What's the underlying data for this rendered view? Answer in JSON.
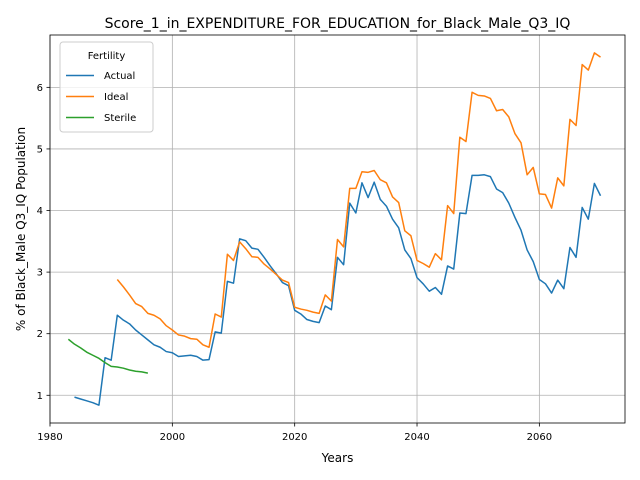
{
  "chart_data": {
    "type": "line",
    "title": "Score_1_in_EXPENDITURE_FOR_EDUCATION_for_Black_Male_Q3_IQ",
    "xlabel": "Years",
    "ylabel": "% of Black_Male Q3_IQ Population",
    "xlim": [
      1980,
      2074
    ],
    "ylim": [
      0.55,
      6.85
    ],
    "xticks": [
      1980,
      2000,
      2020,
      2040,
      2060
    ],
    "yticks": [
      1,
      2,
      3,
      4,
      5,
      6
    ],
    "grid": true,
    "legend": {
      "title": "Fertility",
      "placement": "top-left"
    },
    "series": [
      {
        "name": "Actual",
        "color": "#1f77b4",
        "x": [
          1984,
          1985,
          1986,
          1987,
          1988,
          1989,
          1990,
          1991,
          1992,
          1993,
          1994,
          1995,
          1996,
          1997,
          1998,
          1999,
          2000,
          2001,
          2002,
          2003,
          2004,
          2005,
          2006,
          2007,
          2008,
          2009,
          2010,
          2011,
          2012,
          2013,
          2014,
          2015,
          2016,
          2017,
          2018,
          2019,
          2020,
          2021,
          2022,
          2023,
          2024,
          2025,
          2026,
          2027,
          2028,
          2029,
          2030,
          2031,
          2032,
          2033,
          2034,
          2035,
          2036,
          2037,
          2038,
          2039,
          2040,
          2041,
          2042,
          2043,
          2044,
          2045,
          2046,
          2047,
          2048,
          2049,
          2050,
          2051,
          2052,
          2053,
          2054,
          2055,
          2056,
          2057,
          2058,
          2059,
          2060,
          2061,
          2062,
          2063,
          2064,
          2065,
          2066,
          2067,
          2068,
          2069,
          2070
        ],
        "y": [
          0.97,
          0.94,
          0.91,
          0.88,
          0.84,
          1.61,
          1.57,
          2.3,
          2.22,
          2.16,
          2.06,
          1.98,
          1.9,
          1.82,
          1.78,
          1.71,
          1.69,
          1.63,
          1.64,
          1.65,
          1.63,
          1.57,
          1.58,
          2.03,
          2.01,
          2.85,
          2.82,
          3.54,
          3.51,
          3.39,
          3.37,
          3.24,
          3.1,
          2.97,
          2.83,
          2.78,
          2.38,
          2.32,
          2.23,
          2.2,
          2.18,
          2.45,
          2.39,
          3.24,
          3.12,
          4.12,
          3.96,
          4.45,
          4.21,
          4.46,
          4.18,
          4.07,
          3.86,
          3.72,
          3.36,
          3.22,
          2.91,
          2.81,
          2.69,
          2.75,
          2.64,
          3.1,
          3.05,
          3.96,
          3.95,
          4.57,
          4.57,
          4.58,
          4.55,
          4.35,
          4.29,
          4.12,
          3.89,
          3.68,
          3.36,
          3.17,
          2.88,
          2.81,
          2.66,
          2.87,
          2.73,
          3.4,
          3.24,
          4.05,
          3.86,
          4.44,
          4.24
        ]
      },
      {
        "name": "Ideal",
        "color": "#ff7f0e",
        "x": [
          1991,
          1992,
          1993,
          1994,
          1995,
          1996,
          1997,
          1998,
          1999,
          2000,
          2001,
          2002,
          2003,
          2004,
          2005,
          2006,
          2007,
          2008,
          2009,
          2010,
          2011,
          2012,
          2013,
          2014,
          2015,
          2016,
          2017,
          2018,
          2019,
          2020,
          2021,
          2022,
          2023,
          2024,
          2025,
          2026,
          2027,
          2028,
          2029,
          2030,
          2031,
          2032,
          2033,
          2034,
          2035,
          2036,
          2037,
          2038,
          2039,
          2040,
          2041,
          2042,
          2043,
          2044,
          2045,
          2046,
          2047,
          2048,
          2049,
          2050,
          2051,
          2052,
          2053,
          2054,
          2055,
          2056,
          2057,
          2058,
          2059,
          2060,
          2061,
          2062,
          2063,
          2064,
          2065,
          2066,
          2067,
          2068,
          2069,
          2070
        ],
        "y": [
          2.88,
          2.76,
          2.63,
          2.49,
          2.44,
          2.33,
          2.3,
          2.24,
          2.13,
          2.06,
          1.98,
          1.96,
          1.92,
          1.91,
          1.82,
          1.78,
          2.32,
          2.27,
          3.29,
          3.19,
          3.49,
          3.38,
          3.25,
          3.24,
          3.13,
          3.05,
          2.96,
          2.87,
          2.83,
          2.43,
          2.4,
          2.38,
          2.35,
          2.33,
          2.63,
          2.53,
          3.53,
          3.41,
          4.36,
          4.36,
          4.63,
          4.62,
          4.65,
          4.5,
          4.45,
          4.22,
          4.13,
          3.67,
          3.59,
          3.19,
          3.14,
          3.08,
          3.3,
          3.2,
          4.08,
          3.95,
          5.19,
          5.12,
          5.92,
          5.87,
          5.86,
          5.82,
          5.62,
          5.64,
          5.52,
          5.25,
          5.1,
          4.58,
          4.7,
          4.27,
          4.26,
          4.04,
          4.53,
          4.4,
          5.48,
          5.38,
          6.37,
          6.28,
          6.56,
          6.49
        ]
      },
      {
        "name": "Sterile",
        "color": "#2ca02c",
        "x": [
          1983,
          1984,
          1985,
          1986,
          1987,
          1988,
          1989,
          1990,
          1991,
          1992,
          1993,
          1994,
          1995,
          1996
        ],
        "y": [
          1.91,
          1.83,
          1.77,
          1.7,
          1.65,
          1.6,
          1.53,
          1.47,
          1.46,
          1.44,
          1.41,
          1.39,
          1.38,
          1.36
        ]
      }
    ]
  }
}
